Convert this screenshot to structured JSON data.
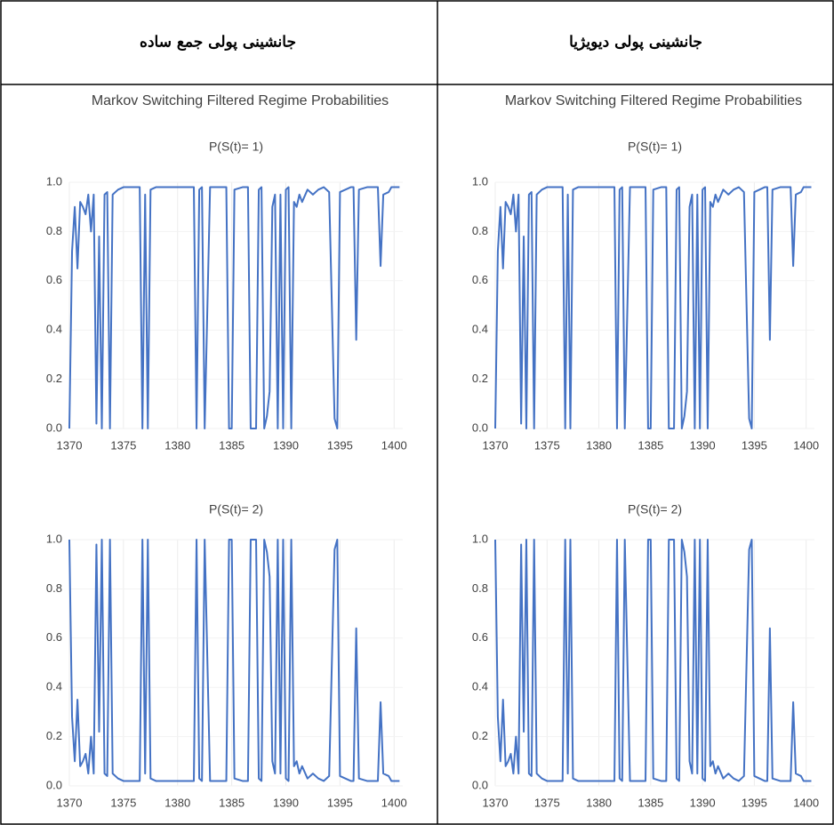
{
  "table": {
    "header": [
      "جانشینی پولی جمع ساده",
      "جانشینی پولی دیویژیا"
    ],
    "cells": [
      {
        "title": "Markov Switching Filtered Regime Probabilities",
        "charts": [
          {
            "type": "line",
            "subtitle": "P(S(t)= 1)",
            "x": [
              1370,
              1370.25,
              1370.5,
              1370.75,
              1371,
              1371.25,
              1371.5,
              1371.75,
              1372,
              1372.25,
              1372.5,
              1372.75,
              1373,
              1373.25,
              1373.5,
              1373.75,
              1374,
              1374.5,
              1375,
              1375.5,
              1376,
              1376.5,
              1376.75,
              1377,
              1377.25,
              1377.5,
              1378,
              1379,
              1380,
              1381,
              1381.5,
              1381.75,
              1382,
              1382.25,
              1382.5,
              1383,
              1384,
              1384.5,
              1384.75,
              1385,
              1385.25,
              1386,
              1386.5,
              1386.75,
              1387.25,
              1387.5,
              1387.75,
              1388,
              1388.25,
              1388.5,
              1388.75,
              1389,
              1389.25,
              1389.5,
              1389.75,
              1390,
              1390.25,
              1390.5,
              1390.75,
              1391,
              1391.25,
              1391.5,
              1392,
              1392.5,
              1393,
              1393.5,
              1394,
              1394.5,
              1394.75,
              1395,
              1395.5,
              1396,
              1396.25,
              1396.5,
              1396.75,
              1397.5,
              1398,
              1398.5,
              1398.75,
              1399,
              1399.5,
              1399.75,
              1400.5
            ],
            "series": [
              {
                "color": "#4472c4",
                "values": [
                  0,
                  0.72,
                  0.9,
                  0.65,
                  0.92,
                  0.9,
                  0.87,
                  0.95,
                  0.8,
                  0.95,
                  0.02,
                  0.78,
                  0,
                  0.95,
                  0.96,
                  0,
                  0.95,
                  0.97,
                  0.98,
                  0.98,
                  0.98,
                  0.98,
                  0,
                  0.95,
                  0,
                  0.97,
                  0.98,
                  0.98,
                  0.98,
                  0.98,
                  0.98,
                  0,
                  0.97,
                  0.98,
                  0,
                  0.98,
                  0.98,
                  0.98,
                  0,
                  0,
                  0.97,
                  0.98,
                  0.98,
                  0,
                  0,
                  0.97,
                  0.98,
                  0,
                  0.05,
                  0.15,
                  0.9,
                  0.95,
                  0,
                  0.95,
                  0,
                  0.97,
                  0.98,
                  0,
                  0.92,
                  0.9,
                  0.95,
                  0.92,
                  0.97,
                  0.95,
                  0.97,
                  0.98,
                  0.96,
                  0.04,
                  0,
                  0.96,
                  0.97,
                  0.98,
                  0.98,
                  0.36,
                  0.97,
                  0.98,
                  0.98,
                  0.98,
                  0.66,
                  0.95,
                  0.96,
                  0.98,
                  0.98
                ]
              }
            ],
            "xlim": [
              1370,
              1400.8
            ],
            "xticks": [
              1370,
              1375,
              1380,
              1385,
              1390,
              1395,
              1400
            ],
            "ylim": [
              0,
              1
            ],
            "yticks": [
              {
                "value": 0,
                "label": "0.0"
              },
              0.2,
              0.4,
              0.6,
              0.8,
              {
                "value": 1,
                "label": "1.0"
              }
            ],
            "grid": true
          },
          {
            "type": "line",
            "subtitle": "P(S(t)= 2)",
            "x": [
              1370,
              1370.25,
              1370.5,
              1370.75,
              1371,
              1371.25,
              1371.5,
              1371.75,
              1372,
              1372.25,
              1372.5,
              1372.75,
              1373,
              1373.25,
              1373.5,
              1373.75,
              1374,
              1374.5,
              1375,
              1375.5,
              1376,
              1376.5,
              1376.75,
              1377,
              1377.25,
              1377.5,
              1378,
              1379,
              1380,
              1381,
              1381.5,
              1381.75,
              1382,
              1382.25,
              1382.5,
              1383,
              1384,
              1384.5,
              1384.75,
              1385,
              1385.25,
              1386,
              1386.5,
              1386.75,
              1387.25,
              1387.5,
              1387.75,
              1388,
              1388.25,
              1388.5,
              1388.75,
              1389,
              1389.25,
              1389.5,
              1389.75,
              1390,
              1390.25,
              1390.5,
              1390.75,
              1391,
              1391.25,
              1391.5,
              1392,
              1392.5,
              1393,
              1393.5,
              1394,
              1394.5,
              1394.75,
              1395,
              1395.5,
              1396,
              1396.25,
              1396.5,
              1396.75,
              1397.5,
              1398,
              1398.5,
              1398.75,
              1399,
              1399.5,
              1399.75,
              1400.5
            ],
            "series": [
              {
                "color": "#4472c4",
                "values": [
                  1,
                  0.28,
                  0.1,
                  0.35,
                  0.08,
                  0.1,
                  0.13,
                  0.05,
                  0.2,
                  0.05,
                  0.98,
                  0.22,
                  1,
                  0.05,
                  0.04,
                  1,
                  0.05,
                  0.03,
                  0.02,
                  0.02,
                  0.02,
                  0.02,
                  1,
                  0.05,
                  1,
                  0.03,
                  0.02,
                  0.02,
                  0.02,
                  0.02,
                  0.02,
                  1,
                  0.03,
                  0.02,
                  1,
                  0.02,
                  0.02,
                  0.02,
                  1,
                  1,
                  0.03,
                  0.02,
                  0.02,
                  1,
                  1,
                  0.03,
                  0.02,
                  1,
                  0.95,
                  0.85,
                  0.1,
                  0.05,
                  1,
                  0.05,
                  1,
                  0.03,
                  0.02,
                  1,
                  0.08,
                  0.1,
                  0.05,
                  0.08,
                  0.03,
                  0.05,
                  0.03,
                  0.02,
                  0.04,
                  0.96,
                  1,
                  0.04,
                  0.03,
                  0.02,
                  0.02,
                  0.64,
                  0.03,
                  0.02,
                  0.02,
                  0.02,
                  0.34,
                  0.05,
                  0.04,
                  0.02,
                  0.02
                ]
              }
            ],
            "xlim": [
              1370,
              1400.8
            ],
            "xticks": [
              1370,
              1375,
              1380,
              1385,
              1390,
              1395,
              1400
            ],
            "ylim": [
              0,
              1
            ],
            "yticks": [
              {
                "value": 0,
                "label": "0.0"
              },
              0.2,
              0.4,
              0.6,
              0.8,
              {
                "value": 1,
                "label": "1.0"
              }
            ],
            "grid": true
          }
        ]
      },
      {
        "title": "Markov Switching Filtered Regime Probabilities",
        "charts": [
          {
            "type": "line",
            "subtitle": "P(S(t)= 1)",
            "x": [
              1370,
              1370.25,
              1370.5,
              1370.75,
              1371,
              1371.25,
              1371.5,
              1371.75,
              1372,
              1372.25,
              1372.5,
              1372.75,
              1373,
              1373.25,
              1373.5,
              1373.75,
              1374,
              1374.5,
              1375,
              1375.5,
              1376,
              1376.5,
              1376.75,
              1377,
              1377.25,
              1377.5,
              1378,
              1379,
              1380,
              1381,
              1381.5,
              1381.75,
              1382,
              1382.25,
              1382.5,
              1383,
              1384,
              1384.5,
              1384.75,
              1385,
              1385.25,
              1386,
              1386.5,
              1386.75,
              1387.25,
              1387.5,
              1387.75,
              1388,
              1388.25,
              1388.5,
              1388.75,
              1389,
              1389.25,
              1389.5,
              1389.75,
              1390,
              1390.25,
              1390.5,
              1390.75,
              1391,
              1391.25,
              1391.5,
              1392,
              1392.5,
              1393,
              1393.5,
              1394,
              1394.5,
              1394.75,
              1395,
              1395.5,
              1396,
              1396.25,
              1396.5,
              1396.75,
              1397.5,
              1398,
              1398.5,
              1398.75,
              1399,
              1399.5,
              1399.75,
              1400.5
            ],
            "series": [
              {
                "color": "#4472c4",
                "values": [
                  0,
                  0.72,
                  0.9,
                  0.65,
                  0.92,
                  0.9,
                  0.87,
                  0.95,
                  0.8,
                  0.95,
                  0.02,
                  0.78,
                  0,
                  0.95,
                  0.96,
                  0,
                  0.95,
                  0.97,
                  0.98,
                  0.98,
                  0.98,
                  0.98,
                  0,
                  0.95,
                  0,
                  0.97,
                  0.98,
                  0.98,
                  0.98,
                  0.98,
                  0.98,
                  0,
                  0.97,
                  0.98,
                  0,
                  0.98,
                  0.98,
                  0.98,
                  0,
                  0,
                  0.97,
                  0.98,
                  0.98,
                  0,
                  0,
                  0.97,
                  0.98,
                  0,
                  0.05,
                  0.15,
                  0.9,
                  0.95,
                  0,
                  0.95,
                  0,
                  0.97,
                  0.98,
                  0,
                  0.92,
                  0.9,
                  0.95,
                  0.92,
                  0.97,
                  0.95,
                  0.97,
                  0.98,
                  0.96,
                  0.04,
                  0,
                  0.96,
                  0.97,
                  0.98,
                  0.98,
                  0.36,
                  0.97,
                  0.98,
                  0.98,
                  0.98,
                  0.66,
                  0.95,
                  0.96,
                  0.98,
                  0.98
                ]
              }
            ],
            "xlim": [
              1370,
              1400.8
            ],
            "xticks": [
              1370,
              1375,
              1380,
              1385,
              1390,
              1395,
              1400
            ],
            "ylim": [
              0,
              1
            ],
            "yticks": [
              {
                "value": 0,
                "label": "0.0"
              },
              0.2,
              0.4,
              0.6,
              0.8,
              {
                "value": 1,
                "label": "1.0"
              }
            ],
            "grid": true
          },
          {
            "type": "line",
            "subtitle": "P(S(t)= 2)",
            "x": [
              1370,
              1370.25,
              1370.5,
              1370.75,
              1371,
              1371.25,
              1371.5,
              1371.75,
              1372,
              1372.25,
              1372.5,
              1372.75,
              1373,
              1373.25,
              1373.5,
              1373.75,
              1374,
              1374.5,
              1375,
              1375.5,
              1376,
              1376.5,
              1376.75,
              1377,
              1377.25,
              1377.5,
              1378,
              1379,
              1380,
              1381,
              1381.5,
              1381.75,
              1382,
              1382.25,
              1382.5,
              1383,
              1384,
              1384.5,
              1384.75,
              1385,
              1385.25,
              1386,
              1386.5,
              1386.75,
              1387.25,
              1387.5,
              1387.75,
              1388,
              1388.25,
              1388.5,
              1388.75,
              1389,
              1389.25,
              1389.5,
              1389.75,
              1390,
              1390.25,
              1390.5,
              1390.75,
              1391,
              1391.25,
              1391.5,
              1392,
              1392.5,
              1393,
              1393.5,
              1394,
              1394.5,
              1394.75,
              1395,
              1395.5,
              1396,
              1396.25,
              1396.5,
              1396.75,
              1397.5,
              1398,
              1398.5,
              1398.75,
              1399,
              1399.5,
              1399.75,
              1400.5
            ],
            "series": [
              {
                "color": "#4472c4",
                "values": [
                  1,
                  0.28,
                  0.1,
                  0.35,
                  0.08,
                  0.1,
                  0.13,
                  0.05,
                  0.2,
                  0.05,
                  0.98,
                  0.22,
                  1,
                  0.05,
                  0.04,
                  1,
                  0.05,
                  0.03,
                  0.02,
                  0.02,
                  0.02,
                  0.02,
                  1,
                  0.05,
                  1,
                  0.03,
                  0.02,
                  0.02,
                  0.02,
                  0.02,
                  0.02,
                  1,
                  0.03,
                  0.02,
                  1,
                  0.02,
                  0.02,
                  0.02,
                  1,
                  1,
                  0.03,
                  0.02,
                  0.02,
                  1,
                  1,
                  0.03,
                  0.02,
                  1,
                  0.95,
                  0.85,
                  0.1,
                  0.05,
                  1,
                  0.05,
                  1,
                  0.03,
                  0.02,
                  1,
                  0.08,
                  0.1,
                  0.05,
                  0.08,
                  0.03,
                  0.05,
                  0.03,
                  0.02,
                  0.04,
                  0.96,
                  1,
                  0.04,
                  0.03,
                  0.02,
                  0.02,
                  0.64,
                  0.03,
                  0.02,
                  0.02,
                  0.02,
                  0.34,
                  0.05,
                  0.04,
                  0.02,
                  0.02
                ]
              }
            ],
            "xlim": [
              1370,
              1400.8
            ],
            "xticks": [
              1370,
              1375,
              1380,
              1385,
              1390,
              1395,
              1400
            ],
            "ylim": [
              0,
              1
            ],
            "yticks": [
              {
                "value": 0,
                "label": "0.0"
              },
              0.2,
              0.4,
              0.6,
              0.8,
              {
                "value": 1,
                "label": "1.0"
              }
            ],
            "grid": true
          }
        ]
      }
    ]
  }
}
